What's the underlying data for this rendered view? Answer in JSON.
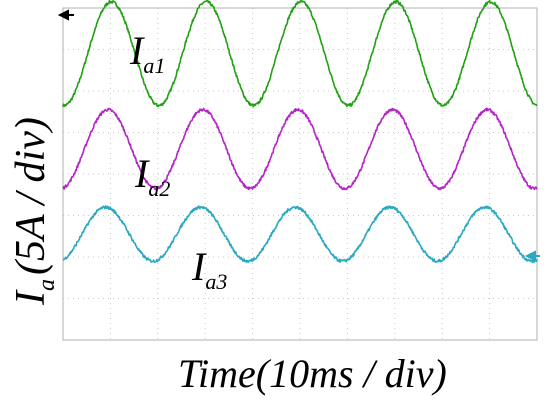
{
  "chart_data": {
    "type": "line",
    "ylabel": {
      "main": "I",
      "sub": "a",
      "rest": "(5A / div)"
    },
    "xlabel": "Time(10ms / div)",
    "x_unit_per_div": "10ms",
    "y_unit_per_div": "5A",
    "x_divisions": 10,
    "y_divisions": 8,
    "grid": true,
    "series": [
      {
        "name": "I",
        "sub": "a1",
        "color": "#22a014",
        "offset_div": 6.9,
        "amplitude_div": 1.25,
        "period_div": 2.0,
        "phase_div": 0.52
      },
      {
        "name": "I",
        "sub": "a2",
        "color": "#b424c8",
        "offset_div": 4.6,
        "amplitude_div": 0.95,
        "period_div": 2.0,
        "phase_div": 0.45
      },
      {
        "name": "I",
        "sub": "a3",
        "color": "#2aa8c0",
        "offset_div": 2.55,
        "amplitude_div": 0.65,
        "period_div": 2.0,
        "phase_div": 0.4
      }
    ]
  }
}
